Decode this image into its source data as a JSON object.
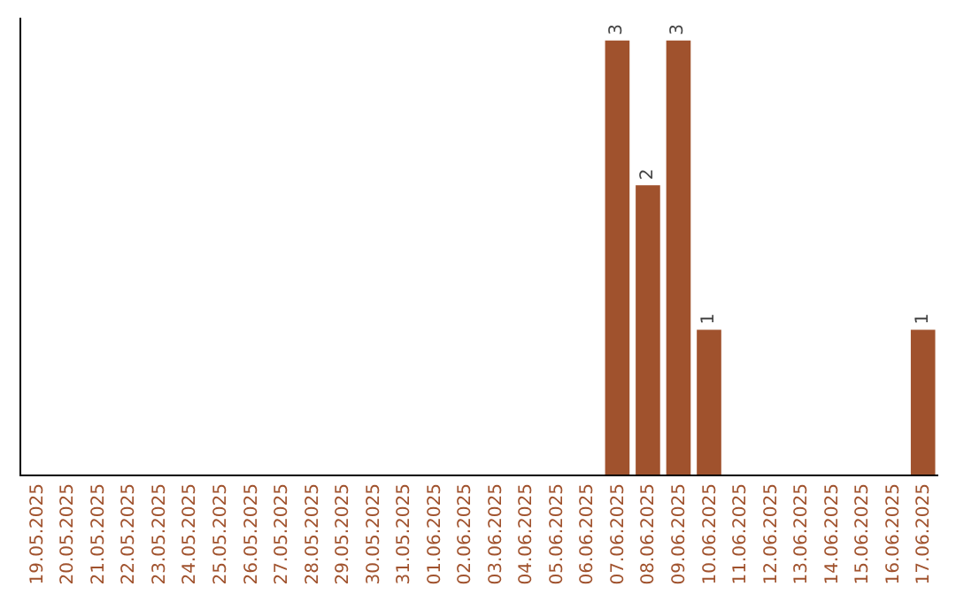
{
  "chart_data": {
    "type": "bar",
    "categories": [
      "19.05.2025",
      "20.05.2025",
      "21.05.2025",
      "22.05.2025",
      "23.05.2025",
      "24.05.2025",
      "25.05.2025",
      "26.05.2025",
      "27.05.2025",
      "28.05.2025",
      "29.05.2025",
      "30.05.2025",
      "31.05.2025",
      "01.06.2025",
      "02.06.2025",
      "03.06.2025",
      "04.06.2025",
      "05.06.2025",
      "06.06.2025",
      "07.06.2025",
      "08.06.2025",
      "09.06.2025",
      "10.06.2025",
      "11.06.2025",
      "12.06.2025",
      "13.06.2025",
      "14.06.2025",
      "15.06.2025",
      "16.06.2025",
      "17.06.2025"
    ],
    "values": [
      null,
      null,
      null,
      null,
      null,
      null,
      null,
      null,
      null,
      null,
      null,
      null,
      null,
      null,
      null,
      null,
      null,
      null,
      null,
      3,
      2,
      3,
      1,
      null,
      null,
      null,
      null,
      null,
      null,
      1
    ],
    "data_labels": true,
    "color": "#a0522d",
    "tick_labels": "x",
    "grid": false,
    "legend": false
  }
}
